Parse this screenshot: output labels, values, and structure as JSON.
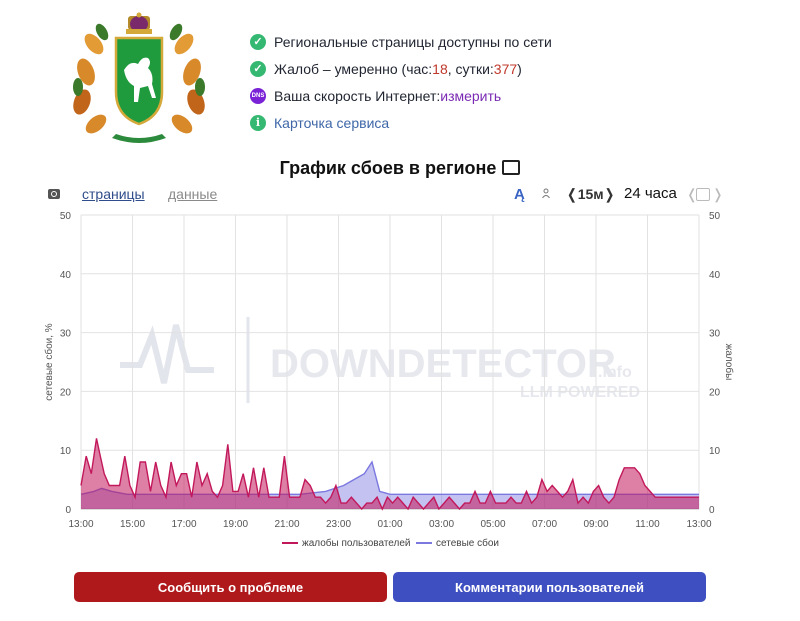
{
  "status": {
    "sites": "Региональные страницы доступны по сети",
    "complaints_prefix": "Жалоб – умеренно (час: ",
    "complaints_hour": "18",
    "complaints_mid": ", сутки: ",
    "complaints_day": "377",
    "complaints_suffix": ")",
    "speed_prefix": "Ваша скорость Интернет: ",
    "speed_link": "измерить",
    "card": "Карточка сервиса",
    "dns_badge": "DNS"
  },
  "title": "График сбоев в регионе",
  "toolbar": {
    "pages": "страницы",
    "data": "данные",
    "interval": "❬15м❭",
    "range": "24 часа",
    "prev": "❬",
    "next": "❭",
    "style_glyph": "Ą"
  },
  "watermark": {
    "main": "DOWNDETECTOR",
    "sub": "LLM POWERED",
    "suffix": ".info"
  },
  "buttons": {
    "report": "Сообщить о проблеме",
    "comments": "Комментарии пользователей"
  },
  "colors": {
    "complaints": "#c2185b",
    "outages": "#7b78e0",
    "report_btn": "#b0191c",
    "comments_btn": "#3e4fc1"
  },
  "chart_data": {
    "type": "area",
    "ylabel": "сетевые сбои, %",
    "y2label": "жалобы",
    "ylim": [
      0,
      50
    ],
    "yticks": [
      0,
      10,
      20,
      30,
      40,
      50
    ],
    "xticks": [
      "13:00",
      "15:00",
      "17:00",
      "19:00",
      "21:00",
      "23:00",
      "01:00",
      "03:00",
      "05:00",
      "07:00",
      "09:00",
      "11:00",
      "13:00"
    ],
    "x_hours": [
      0,
      24
    ],
    "grid": true,
    "legend": "bottom",
    "series": [
      {
        "name": "жалобы пользователей",
        "x": [
          0,
          0.2,
          0.4,
          0.6,
          0.75,
          0.9,
          1.1,
          1.3,
          1.5,
          1.7,
          1.9,
          2.1,
          2.3,
          2.5,
          2.7,
          2.9,
          3.1,
          3.3,
          3.5,
          3.7,
          3.9,
          4.1,
          4.3,
          4.5,
          4.7,
          4.9,
          5.1,
          5.3,
          5.5,
          5.7,
          5.9,
          6.1,
          6.3,
          6.5,
          6.7,
          6.9,
          7.1,
          7.3,
          7.5,
          7.7,
          7.9,
          8.1,
          8.3,
          8.5,
          8.7,
          8.9,
          9.1,
          9.3,
          9.5,
          9.7,
          9.9,
          10.1,
          10.3,
          10.5,
          10.7,
          10.9,
          11.1,
          11.3,
          11.5,
          11.7,
          11.9,
          12.1,
          12.3,
          12.5,
          12.7,
          12.9,
          13.1,
          13.3,
          13.5,
          13.7,
          13.9,
          14.1,
          14.3,
          14.5,
          14.7,
          14.9,
          15.1,
          15.3,
          15.5,
          15.7,
          15.9,
          16.1,
          16.3,
          16.5,
          16.7,
          16.9,
          17.1,
          17.3,
          17.5,
          17.7,
          17.9,
          18.1,
          18.3,
          18.5,
          18.7,
          18.9,
          19.1,
          19.3,
          19.5,
          19.7,
          19.9,
          20.1,
          20.3,
          20.5,
          20.7,
          20.9,
          21.1,
          21.3,
          21.5,
          21.7,
          21.9,
          22.1,
          22.3,
          22.5,
          22.7,
          22.9,
          23.1,
          23.3,
          23.5,
          24
        ],
        "values": [
          4,
          9,
          6,
          12,
          9,
          6,
          4,
          4,
          4,
          9,
          4,
          2,
          8,
          8,
          3,
          8,
          4,
          2,
          8,
          4,
          6,
          6,
          2,
          8,
          4,
          6,
          3,
          2,
          4,
          11,
          3,
          3,
          6,
          2,
          7,
          2,
          7,
          2,
          2,
          2,
          9,
          2,
          2,
          2,
          5,
          4,
          2,
          2,
          1,
          2,
          4,
          1,
          1,
          2,
          1,
          0,
          1,
          1,
          2,
          0,
          2,
          1,
          2,
          1,
          0,
          2,
          1,
          0,
          1,
          2,
          0,
          1,
          2,
          1,
          0,
          1,
          1,
          3,
          1,
          1,
          3,
          1,
          1,
          1,
          2,
          1,
          1,
          3,
          1,
          2,
          5,
          3,
          4,
          3,
          2,
          3,
          5,
          1,
          2,
          1,
          3,
          4,
          2,
          1,
          2,
          5,
          7,
          7,
          7,
          6,
          4,
          3,
          2,
          2,
          2,
          2,
          2,
          2,
          2,
          2
        ]
      },
      {
        "name": "сетевые сбои",
        "x": [
          0,
          0.5,
          0.8,
          1.2,
          1.8,
          2.5,
          3.5,
          4.5,
          5.5,
          6.5,
          7.5,
          8.5,
          9.5,
          10.2,
          10.6,
          11.0,
          11.3,
          11.6,
          12.0,
          13,
          14,
          15,
          16,
          17,
          18,
          19,
          20,
          21,
          22,
          23,
          24
        ],
        "values": [
          2.5,
          3,
          3.5,
          3,
          2.5,
          2.5,
          2.5,
          2.5,
          2.5,
          2.5,
          2.5,
          2.5,
          3,
          4,
          5,
          6,
          8,
          3,
          2.5,
          2.5,
          2.5,
          2.5,
          2.5,
          2.5,
          2.5,
          2.5,
          2.5,
          2.5,
          2.5,
          2.5,
          2.5
        ]
      }
    ]
  }
}
